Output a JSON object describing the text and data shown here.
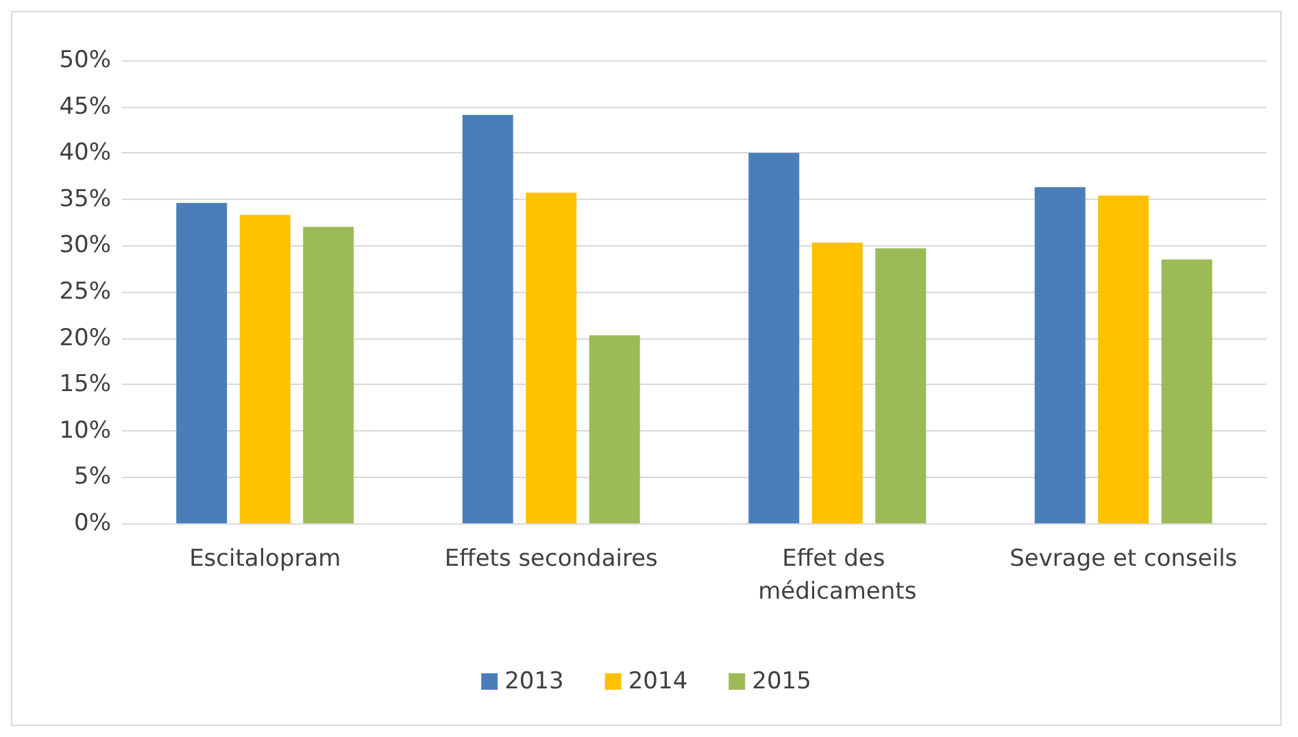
{
  "chart_data": {
    "type": "bar",
    "categories": [
      "Escitalopram",
      "Effets secondaires",
      "Effet des médicaments",
      "Sevrage et conseils"
    ],
    "series": [
      {
        "name": "2013",
        "color": "#4a7ebb",
        "values": [
          34.6,
          44.1,
          40.0,
          36.3
        ]
      },
      {
        "name": "2014",
        "color": "#ffc000",
        "values": [
          33.3,
          35.7,
          30.3,
          35.4
        ]
      },
      {
        "name": "2015",
        "color": "#9bbb59",
        "values": [
          32.0,
          20.3,
          29.7,
          28.5
        ]
      }
    ],
    "ylim": [
      0,
      50
    ],
    "yticks": [
      {
        "value": 0,
        "label": "0%"
      },
      {
        "value": 5,
        "label": "5%"
      },
      {
        "value": 10,
        "label": "10%"
      },
      {
        "value": 15,
        "label": "15%"
      },
      {
        "value": 20,
        "label": "20%"
      },
      {
        "value": 25,
        "label": "25%"
      },
      {
        "value": 30,
        "label": "30%"
      },
      {
        "value": 35,
        "label": "35%"
      },
      {
        "value": 40,
        "label": "40%"
      },
      {
        "value": 45,
        "label": "45%"
      },
      {
        "value": 50,
        "label": "50%"
      }
    ],
    "grid": "y",
    "legend": "bottom"
  }
}
